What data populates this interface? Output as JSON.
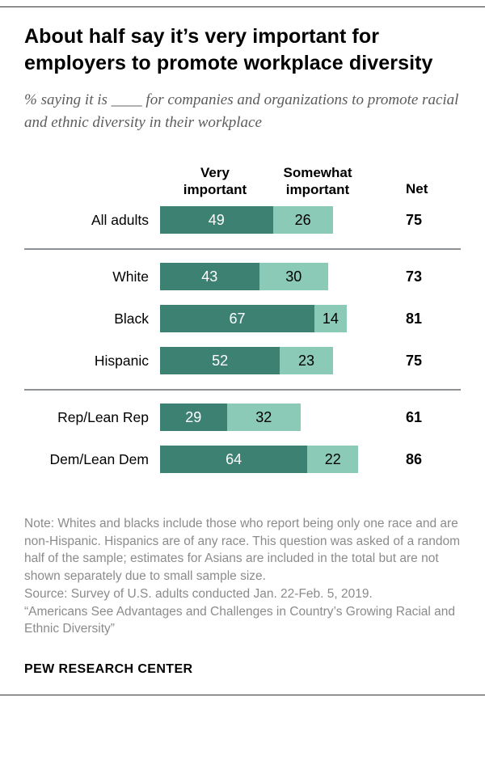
{
  "header": {
    "title": "About half say it’s very important for employers to promote workplace diversity",
    "subtitle": "% saying it is ____ for companies and organizations to promote racial and ethnic diversity in their workplace"
  },
  "chart_data": {
    "type": "bar",
    "orientation": "horizontal",
    "stacked": true,
    "xlim": [
      0,
      100
    ],
    "categories": [
      "All adults",
      "White",
      "Black",
      "Hispanic",
      "Rep/Lean Rep",
      "Dem/Lean Dem"
    ],
    "series": [
      {
        "name": "Very important",
        "color": "#3d8172",
        "values": [
          49,
          43,
          67,
          52,
          29,
          64
        ]
      },
      {
        "name": "Somewhat important",
        "color": "#8acab6",
        "values": [
          26,
          30,
          14,
          23,
          32,
          22
        ]
      }
    ],
    "net": {
      "label": "Net",
      "values": [
        75,
        73,
        81,
        75,
        61,
        86
      ]
    },
    "dividers_before": [
      1,
      4
    ],
    "legend_position": "top",
    "grid": false
  },
  "notes": {
    "note": "Note: Whites and blacks include those who report being only one race and are non-Hispanic. Hispanics are of any race. This question was asked of a random half of the sample; estimates for Asians are included in the total but are not shown separately due to small sample size.",
    "source": "Source: Survey of U.S. adults conducted Jan. 22-Feb. 5, 2019.",
    "quote": "“Americans See Advantages and Challenges in Country’s Growing Racial and Ethnic Diversity”"
  },
  "footer": {
    "brand": "PEW RESEARCH CENTER"
  }
}
